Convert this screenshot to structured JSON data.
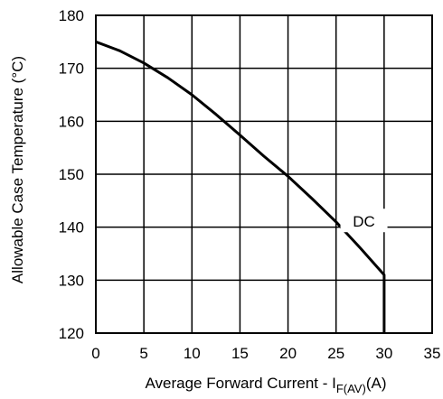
{
  "chart_data": {
    "type": "line",
    "title": "",
    "xlabel_main": "Average Forward Current - I",
    "xlabel_sub": "F(AV)",
    "xlabel_unit": "(A)",
    "ylabel": "Allowable Case Temperature (°C)",
    "xlim": [
      0,
      35
    ],
    "ylim": [
      120,
      180
    ],
    "grid": true,
    "x_ticks": [
      "0",
      "5",
      "10",
      "15",
      "20",
      "25",
      "30",
      "35"
    ],
    "y_ticks": [
      "120",
      "130",
      "140",
      "150",
      "160",
      "170",
      "180"
    ],
    "x": [
      0,
      2.5,
      5,
      7.5,
      10,
      12.5,
      15,
      17.5,
      20,
      22.5,
      25,
      27.5,
      30
    ],
    "series": [
      {
        "values": [
          175,
          173.3,
          171,
          168.2,
          165,
          161.3,
          157.4,
          153.4,
          149.6,
          145.4,
          141.0,
          136.1,
          131.0
        ],
        "drop_to": [
          30,
          120
        ]
      }
    ],
    "annotations": [
      {
        "text": "DC",
        "x": 27.9,
        "y": 141.1
      }
    ]
  }
}
